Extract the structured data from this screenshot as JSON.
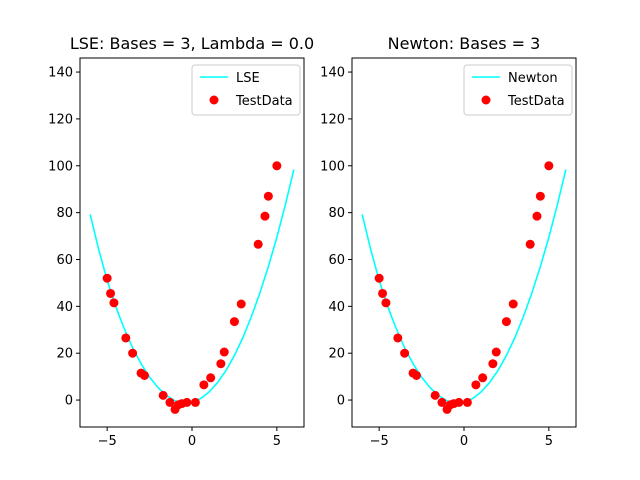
{
  "chart_data": [
    {
      "type": "line+scatter",
      "title": "LSE: Bases = 3, Lambda = 0.0",
      "xlim": [
        -6.6,
        6.6
      ],
      "ylim": [
        -11.5,
        146
      ],
      "xticks": [
        -5,
        0,
        5
      ],
      "yticks": [
        0,
        20,
        40,
        60,
        80,
        100,
        120,
        140
      ],
      "legend_position": "upper right",
      "series": [
        {
          "name": "LSE",
          "kind": "line",
          "color": "#00ffff",
          "x": [
            -6.0,
            -5.5,
            -5.0,
            -4.5,
            -4.0,
            -3.5,
            -3.0,
            -2.5,
            -2.0,
            -1.5,
            -1.0,
            -0.5,
            0.0,
            0.5,
            1.0,
            1.5,
            2.0,
            2.5,
            3.0,
            3.5,
            4.0,
            4.5,
            5.0,
            5.5,
            6.0
          ],
          "y": [
            79.3,
            64.3,
            51.2,
            40.0,
            30.6,
            22.3,
            15.5,
            9.8,
            5.3,
            1.9,
            -0.3,
            -1.3,
            -1.0,
            0.6,
            3.4,
            7.4,
            12.6,
            19.0,
            26.7,
            35.6,
            45.7,
            57.0,
            69.5,
            83.3,
            98.4
          ]
        },
        {
          "name": "TestData",
          "kind": "scatter",
          "color": "#ff0000",
          "x": [
            -5.0,
            -4.8,
            -4.6,
            -3.9,
            -3.5,
            -3.0,
            -2.8,
            -1.7,
            -1.3,
            -1.0,
            -0.8,
            -0.6,
            -0.3,
            0.2,
            0.7,
            1.1,
            1.7,
            1.9,
            2.5,
            2.9,
            3.9,
            4.3,
            4.5,
            5.0
          ],
          "y": [
            52,
            45.5,
            41.5,
            26.5,
            20,
            11.5,
            10.5,
            2,
            -1,
            -4,
            -2,
            -1.5,
            -1,
            -1,
            6.5,
            9.5,
            15.5,
            20.5,
            33.5,
            41,
            66.5,
            78.5,
            87,
            100
          ]
        }
      ]
    },
    {
      "type": "line+scatter",
      "title": "Newton: Bases = 3",
      "xlim": [
        -6.6,
        6.6
      ],
      "ylim": [
        -11.5,
        146
      ],
      "xticks": [
        -5,
        0,
        5
      ],
      "yticks": [
        0,
        20,
        40,
        60,
        80,
        100,
        120,
        140
      ],
      "legend_position": "upper right",
      "series": [
        {
          "name": "Newton",
          "kind": "line",
          "color": "#00ffff",
          "x": [
            -6.0,
            -5.5,
            -5.0,
            -4.5,
            -4.0,
            -3.5,
            -3.0,
            -2.5,
            -2.0,
            -1.5,
            -1.0,
            -0.5,
            0.0,
            0.5,
            1.0,
            1.5,
            2.0,
            2.5,
            3.0,
            3.5,
            4.0,
            4.5,
            5.0,
            5.5,
            6.0
          ],
          "y": [
            79.3,
            64.3,
            51.2,
            40.0,
            30.6,
            22.3,
            15.5,
            9.8,
            5.3,
            1.9,
            -0.3,
            -1.3,
            -1.0,
            0.6,
            3.4,
            7.4,
            12.6,
            19.0,
            26.7,
            35.6,
            45.7,
            57.0,
            69.5,
            83.3,
            98.4
          ]
        },
        {
          "name": "TestData",
          "kind": "scatter",
          "color": "#ff0000",
          "x": [
            -5.0,
            -4.8,
            -4.6,
            -3.9,
            -3.5,
            -3.0,
            -2.8,
            -1.7,
            -1.3,
            -1.0,
            -0.8,
            -0.6,
            -0.3,
            0.2,
            0.7,
            1.1,
            1.7,
            1.9,
            2.5,
            2.9,
            3.9,
            4.3,
            4.5,
            5.0
          ],
          "y": [
            52,
            45.5,
            41.5,
            26.5,
            20,
            11.5,
            10.5,
            2,
            -1,
            -4,
            -2,
            -1.5,
            -1,
            -1,
            6.5,
            9.5,
            15.5,
            20.5,
            33.5,
            41,
            66.5,
            78.5,
            87,
            100
          ]
        }
      ]
    }
  ]
}
